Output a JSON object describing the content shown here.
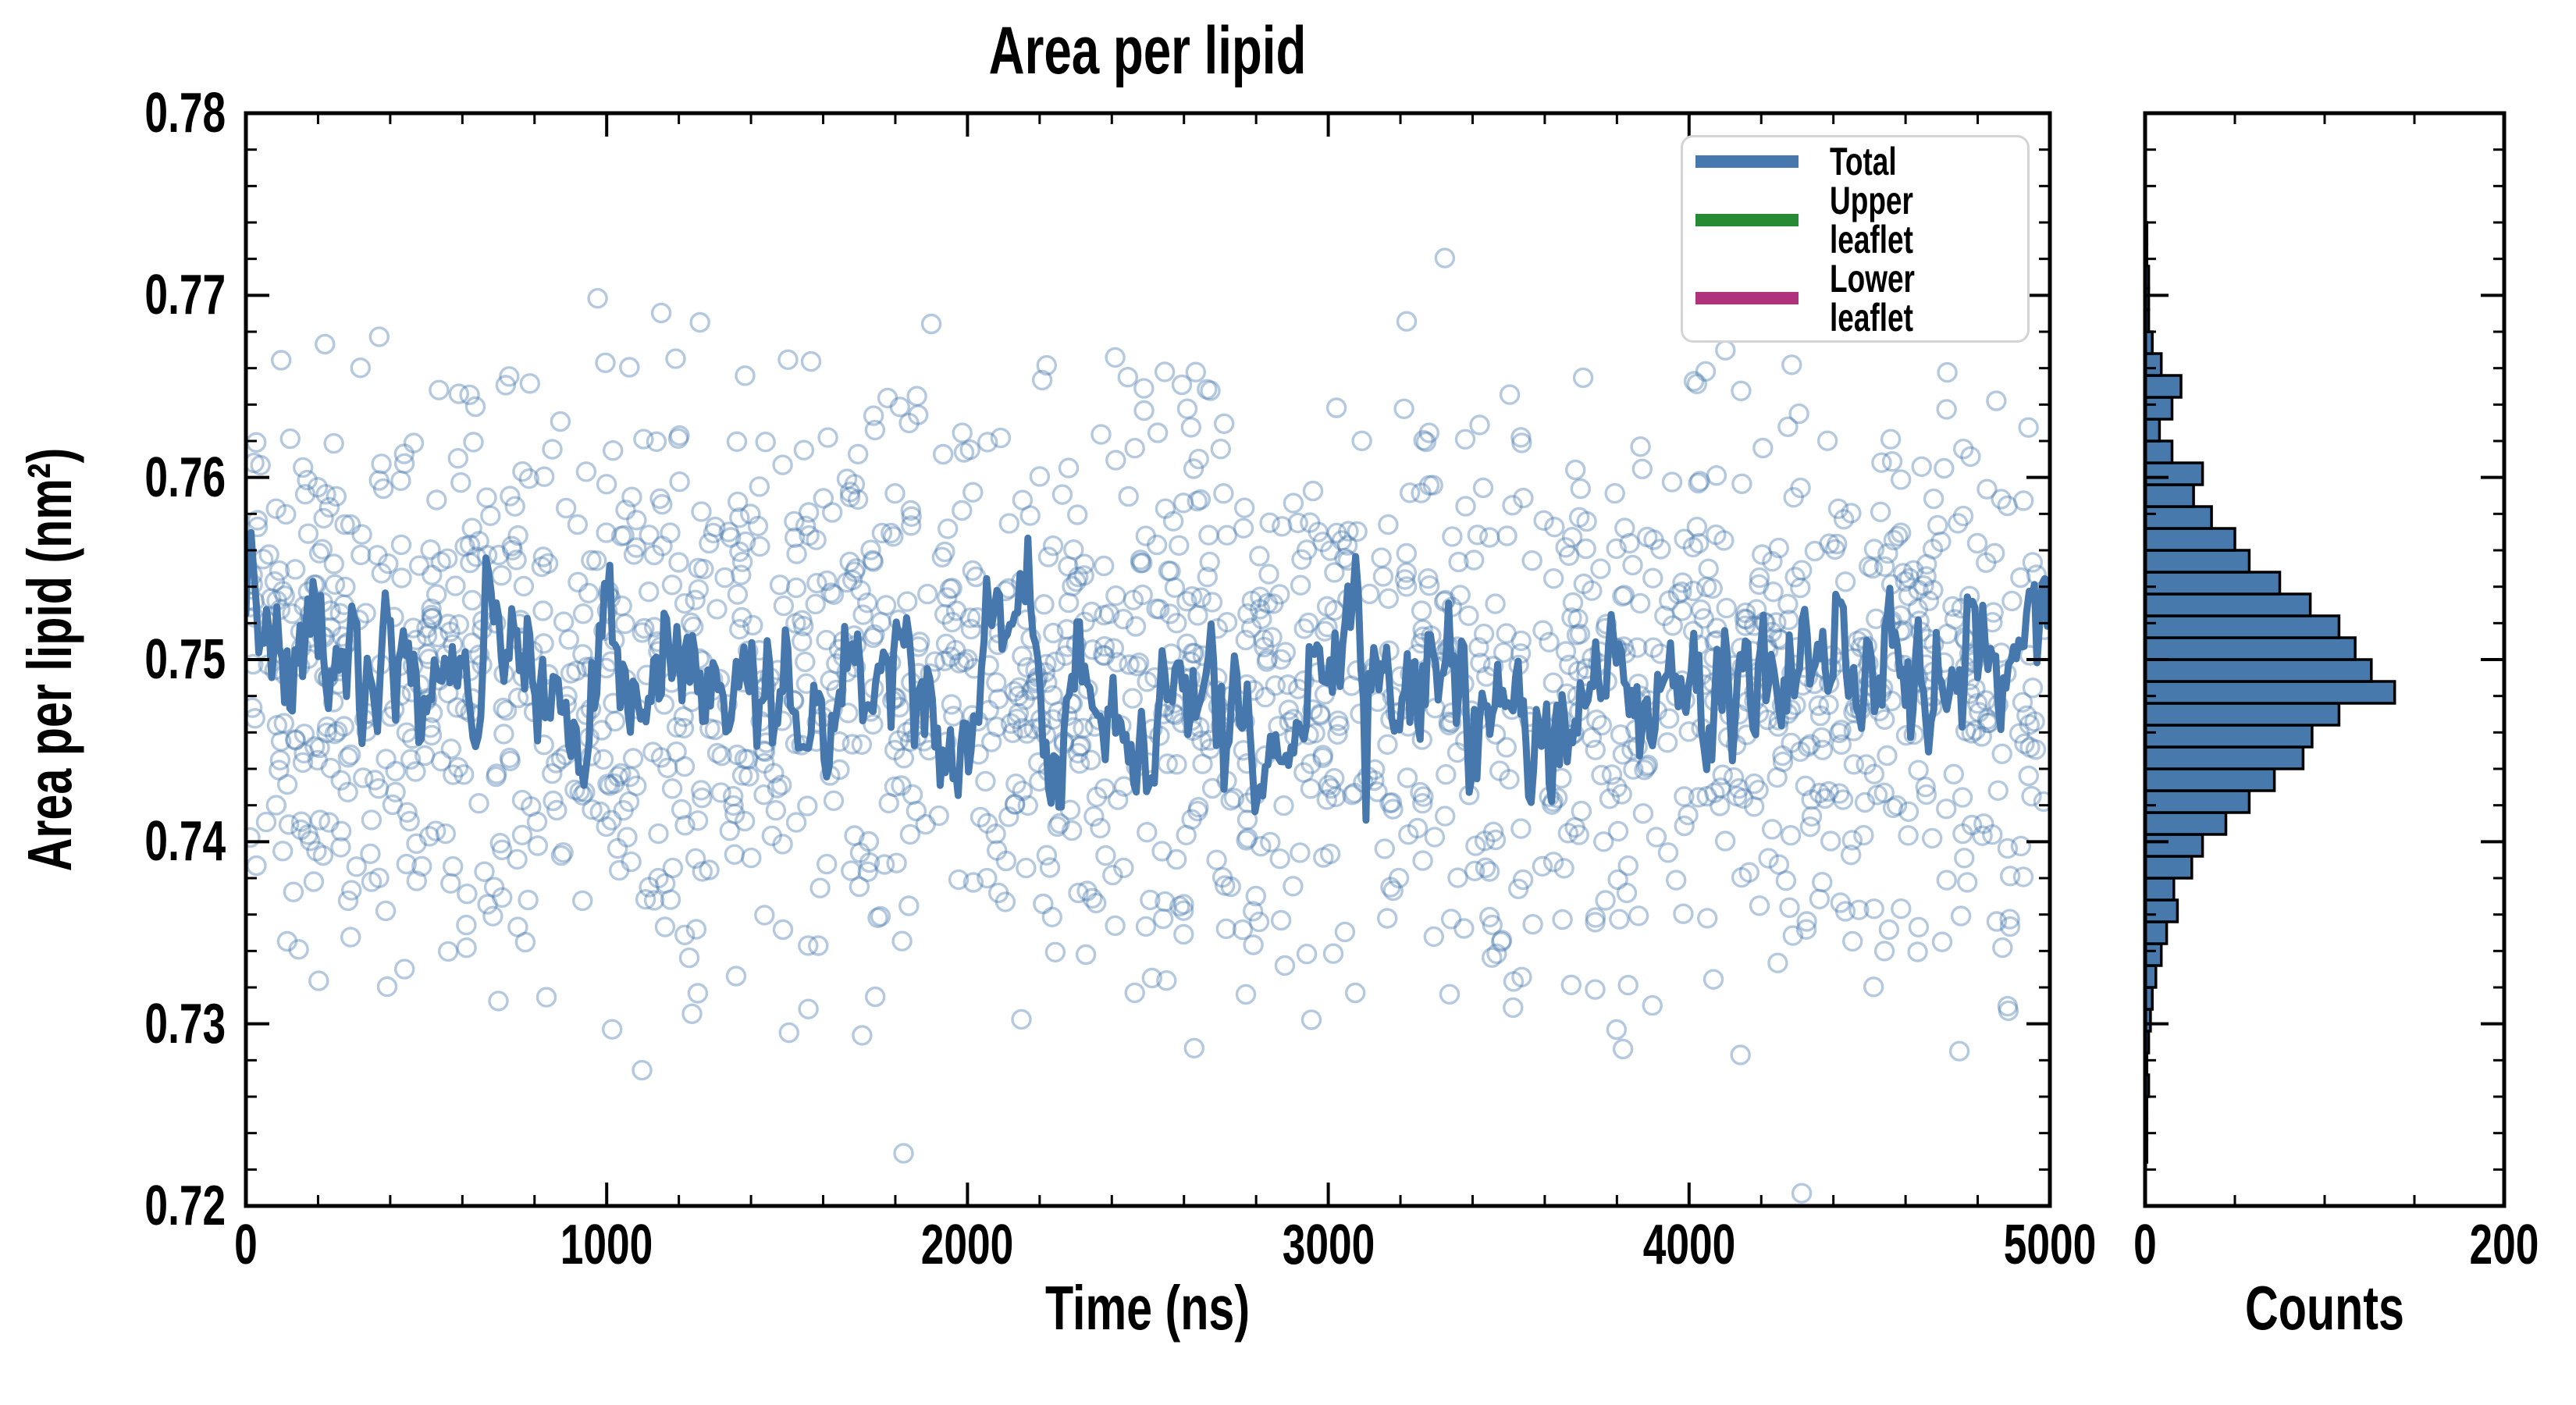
{
  "title": "Area per lipid",
  "axes": {
    "main": {
      "xlabel": "Time (ns)",
      "ylabel": "Area per lipid (nm²)",
      "xlim": [
        0,
        5000
      ],
      "ylim": [
        0.72,
        0.78
      ],
      "x_ticks": {
        "values": [
          0,
          1000,
          2000,
          3000,
          4000,
          5000
        ],
        "labels": [
          "0",
          "1000",
          "2000",
          "3000",
          "4000",
          "5000"
        ],
        "minor_step": 200
      },
      "y_ticks": {
        "values": [
          0.78,
          0.77,
          0.76,
          0.75,
          0.74,
          0.73,
          0.72
        ],
        "labels": [
          "0.78",
          "0.77",
          "0.76",
          "0.75",
          "0.74",
          "0.73",
          "0.72"
        ],
        "minor_step": 0.002
      }
    },
    "hist": {
      "xlabel": "Counts",
      "xlim": [
        0,
        200
      ],
      "x_ticks": {
        "values": [
          0,
          200
        ],
        "labels": [
          "0",
          "200"
        ],
        "minor_values": [
          50,
          100,
          150
        ]
      }
    }
  },
  "legend": {
    "items": [
      {
        "label": "Total",
        "color": "#4678ad"
      },
      {
        "label": "Upper leaflet",
        "color": "#268b32"
      },
      {
        "label": "Lower leaflet",
        "color": "#b0327c"
      }
    ]
  },
  "colors": {
    "scatter": "#4678ad",
    "scatter_opacity": 0.4,
    "line": "#4678ad",
    "hist_fill": "#4779ad",
    "hist_edge": "#000000",
    "axis": "#000000"
  },
  "chart_data": {
    "type": "scatter",
    "title": "Area per lipid",
    "panels": [
      {
        "name": "timeseries",
        "xlabel": "Time (ns)",
        "ylabel": "Area per lipid (nm²)",
        "xlim": [
          0,
          5000
        ],
        "ylim": [
          0.72,
          0.78
        ],
        "grid": false
      },
      {
        "name": "histogram",
        "xlabel": "Counts",
        "xlim": [
          0,
          200
        ],
        "grid": false
      }
    ],
    "legend_position": "upper right of timeseries panel",
    "series": [
      {
        "name": "Total",
        "style": "open-circle scatter + thick running-average line",
        "color": "#4678ad",
        "scatter": {
          "n_points": 1750,
          "x_uniform_range": [
            0,
            5000
          ],
          "y_mean": 0.7487,
          "y_std": 0.0077,
          "y_observed_min": 0.7237,
          "y_observed_max": 0.7735,
          "seed": 20
        },
        "running_average": {
          "n_points": 700,
          "mean": 0.7492,
          "ar1_phi": 0.75,
          "innovation_std": 0.00185,
          "start_value": 0.7525,
          "observed_range": [
            0.7415,
            0.757
          ],
          "seed": 7
        }
      },
      {
        "name": "Upper leaflet",
        "color": "#268b32",
        "visible_in_plot": false
      },
      {
        "name": "Lower leaflet",
        "color": "#b0327c",
        "visible_in_plot": false
      }
    ],
    "histogram": {
      "orientation": "horizontal",
      "series": "Total",
      "bin_start": 0.72,
      "bin_width": 0.0012,
      "counts": [
        0,
        0,
        1,
        1,
        1,
        2,
        1,
        2,
        3,
        4,
        6,
        9,
        12,
        18,
        16,
        26,
        32,
        45,
        58,
        72,
        88,
        93,
        108,
        139,
        126,
        117,
        108,
        92,
        75,
        58,
        50,
        37,
        27,
        32,
        15,
        8,
        15,
        20,
        9,
        4,
        2,
        2,
        2,
        1,
        1,
        0,
        0,
        0,
        0,
        0
      ],
      "peak_count": 139,
      "peak_at_value": 0.748
    }
  }
}
